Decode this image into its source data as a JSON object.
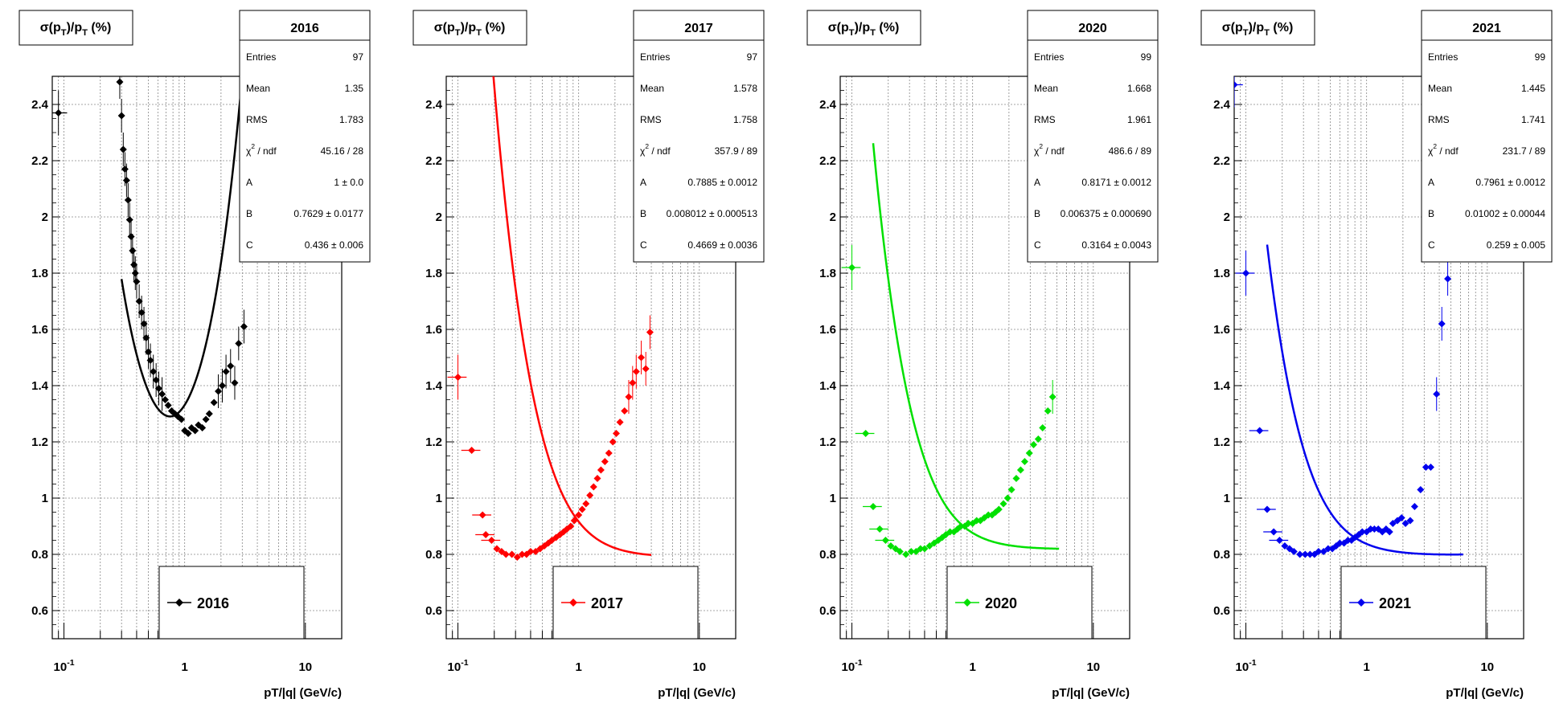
{
  "chart_data": [
    {
      "type": "scatter",
      "title": "2016",
      "ylabel": "σ(p_T)/p_T (%)",
      "xlabel": "pT/|q| (GeV/c)",
      "x_scale": "log",
      "xlim": [
        0.08,
        20
      ],
      "ylim": [
        0.5,
        2.5
      ],
      "color": "#000000",
      "legend_label": "2016",
      "x_ticks": [
        "10^-1",
        "1",
        "10"
      ],
      "y_ticks": [
        "0.6",
        "0.8",
        "1",
        "1.2",
        "1.4",
        "1.6",
        "1.8",
        "2",
        "2.2",
        "2.4"
      ],
      "grid": true,
      "stats": {
        "Entries": "97",
        "Mean": "1.35",
        "RMS": "1.783",
        "chi2_ndf": "45.16 / 28",
        "A": "1 ± 0.0",
        "B": "0.7629 ± 0.0177",
        "C": "0.436 ± 0.006"
      },
      "fit": {
        "A": 1.0,
        "B": 0.7629,
        "C": 0.436,
        "x_min": 0.3,
        "x_max": 3.8
      },
      "points": [
        [
          0.09,
          2.37
        ],
        [
          0.29,
          2.48
        ],
        [
          0.3,
          2.36
        ],
        [
          0.31,
          2.24
        ],
        [
          0.32,
          2.17
        ],
        [
          0.33,
          2.13
        ],
        [
          0.34,
          2.06
        ],
        [
          0.35,
          1.99
        ],
        [
          0.36,
          1.93
        ],
        [
          0.37,
          1.88
        ],
        [
          0.38,
          1.83
        ],
        [
          0.39,
          1.8
        ],
        [
          0.4,
          1.77
        ],
        [
          0.42,
          1.7
        ],
        [
          0.44,
          1.66
        ],
        [
          0.46,
          1.62
        ],
        [
          0.48,
          1.57
        ],
        [
          0.5,
          1.52
        ],
        [
          0.52,
          1.49
        ],
        [
          0.55,
          1.45
        ],
        [
          0.58,
          1.42
        ],
        [
          0.61,
          1.39
        ],
        [
          0.65,
          1.37
        ],
        [
          0.69,
          1.35
        ],
        [
          0.73,
          1.33
        ],
        [
          0.78,
          1.31
        ],
        [
          0.83,
          1.3
        ],
        [
          0.88,
          1.29
        ],
        [
          0.94,
          1.28
        ],
        [
          1.0,
          1.24
        ],
        [
          1.07,
          1.23
        ],
        [
          1.14,
          1.25
        ],
        [
          1.22,
          1.24
        ],
        [
          1.3,
          1.26
        ],
        [
          1.4,
          1.25
        ],
        [
          1.5,
          1.28
        ],
        [
          1.6,
          1.3
        ],
        [
          1.75,
          1.34
        ],
        [
          1.9,
          1.38
        ],
        [
          2.05,
          1.4
        ],
        [
          2.2,
          1.45
        ],
        [
          2.4,
          1.47
        ],
        [
          2.6,
          1.41
        ],
        [
          2.8,
          1.55
        ],
        [
          3.1,
          1.61
        ]
      ]
    },
    {
      "type": "scatter",
      "title": "2017",
      "ylabel": "σ(p_T)/p_T (%)",
      "xlabel": "pT/|q| (GeV/c)",
      "x_scale": "log",
      "xlim": [
        0.08,
        20
      ],
      "ylim": [
        0.5,
        2.5
      ],
      "color": "#ff0000",
      "legend_label": "2017",
      "x_ticks": [
        "10^-1",
        "1",
        "10"
      ],
      "y_ticks": [
        "0.6",
        "0.8",
        "1",
        "1.2",
        "1.4",
        "1.6",
        "1.8",
        "2",
        "2.2",
        "2.4"
      ],
      "grid": true,
      "stats": {
        "Entries": "97",
        "Mean": "1.578",
        "RMS": "1.758",
        "chi2_ndf": "357.9 / 89",
        "A": "0.7885 ± 0.0012",
        "B": "0.008012 ± 0.000513",
        "C": "0.4669 ± 0.0036"
      },
      "fit": {
        "A": 0.7885,
        "B": 0.008012,
        "C": 0.4669,
        "x_min": 0.15,
        "x_max": 4.0
      },
      "points": [
        [
          0.1,
          1.43
        ],
        [
          0.13,
          1.17
        ],
        [
          0.16,
          0.94
        ],
        [
          0.17,
          0.87
        ],
        [
          0.19,
          0.85
        ],
        [
          0.21,
          0.82
        ],
        [
          0.23,
          0.81
        ],
        [
          0.25,
          0.8
        ],
        [
          0.28,
          0.8
        ],
        [
          0.31,
          0.79
        ],
        [
          0.34,
          0.8
        ],
        [
          0.37,
          0.8
        ],
        [
          0.4,
          0.81
        ],
        [
          0.44,
          0.81
        ],
        [
          0.48,
          0.82
        ],
        [
          0.52,
          0.83
        ],
        [
          0.56,
          0.84
        ],
        [
          0.6,
          0.85
        ],
        [
          0.65,
          0.86
        ],
        [
          0.7,
          0.87
        ],
        [
          0.75,
          0.88
        ],
        [
          0.8,
          0.89
        ],
        [
          0.86,
          0.9
        ],
        [
          0.92,
          0.92
        ],
        [
          1.0,
          0.94
        ],
        [
          1.07,
          0.96
        ],
        [
          1.15,
          0.98
        ],
        [
          1.24,
          1.01
        ],
        [
          1.33,
          1.04
        ],
        [
          1.43,
          1.07
        ],
        [
          1.53,
          1.1
        ],
        [
          1.65,
          1.13
        ],
        [
          1.78,
          1.16
        ],
        [
          1.92,
          1.2
        ],
        [
          2.05,
          1.23
        ],
        [
          2.2,
          1.27
        ],
        [
          2.4,
          1.31
        ],
        [
          2.6,
          1.36
        ],
        [
          2.8,
          1.41
        ],
        [
          3.0,
          1.45
        ],
        [
          3.3,
          1.5
        ],
        [
          3.6,
          1.46
        ],
        [
          3.9,
          1.59
        ]
      ]
    },
    {
      "type": "scatter",
      "title": "2020",
      "ylabel": "σ(p_T)/p_T (%)",
      "xlabel": "pT/|q| (GeV/c)",
      "x_scale": "log",
      "xlim": [
        0.08,
        20
      ],
      "ylim": [
        0.5,
        2.5
      ],
      "color": "#00e000",
      "legend_label": "2020",
      "x_ticks": [
        "10^-1",
        "1",
        "10"
      ],
      "y_ticks": [
        "0.6",
        "0.8",
        "1",
        "1.2",
        "1.4",
        "1.6",
        "1.8",
        "2",
        "2.2",
        "2.4"
      ],
      "grid": true,
      "stats": {
        "Entries": "99",
        "Mean": "1.668",
        "RMS": "1.961",
        "chi2_ndf": "486.6 / 89",
        "A": "0.8171 ± 0.0012",
        "B": "0.006375 ± 0.000690",
        "C": "0.3164 ± 0.0043"
      },
      "fit": {
        "A": 0.8171,
        "B": 0.006375,
        "C": 0.3164,
        "x_min": 0.15,
        "x_max": 5.2
      },
      "points": [
        [
          0.1,
          1.82
        ],
        [
          0.13,
          1.23
        ],
        [
          0.15,
          0.97
        ],
        [
          0.17,
          0.89
        ],
        [
          0.19,
          0.85
        ],
        [
          0.21,
          0.83
        ],
        [
          0.23,
          0.82
        ],
        [
          0.25,
          0.81
        ],
        [
          0.28,
          0.8
        ],
        [
          0.31,
          0.81
        ],
        [
          0.34,
          0.81
        ],
        [
          0.37,
          0.82
        ],
        [
          0.4,
          0.82
        ],
        [
          0.44,
          0.83
        ],
        [
          0.48,
          0.84
        ],
        [
          0.52,
          0.85
        ],
        [
          0.56,
          0.86
        ],
        [
          0.6,
          0.87
        ],
        [
          0.65,
          0.88
        ],
        [
          0.7,
          0.88
        ],
        [
          0.75,
          0.89
        ],
        [
          0.8,
          0.9
        ],
        [
          0.86,
          0.9
        ],
        [
          0.92,
          0.91
        ],
        [
          1.0,
          0.91
        ],
        [
          1.08,
          0.92
        ],
        [
          1.16,
          0.92
        ],
        [
          1.25,
          0.93
        ],
        [
          1.35,
          0.94
        ],
        [
          1.45,
          0.94
        ],
        [
          1.55,
          0.95
        ],
        [
          1.65,
          0.96
        ],
        [
          1.8,
          0.98
        ],
        [
          1.95,
          1.0
        ],
        [
          2.1,
          1.03
        ],
        [
          2.3,
          1.07
        ],
        [
          2.5,
          1.1
        ],
        [
          2.7,
          1.13
        ],
        [
          2.95,
          1.16
        ],
        [
          3.2,
          1.19
        ],
        [
          3.5,
          1.21
        ],
        [
          3.8,
          1.25
        ],
        [
          4.2,
          1.31
        ],
        [
          4.6,
          1.36
        ]
      ]
    },
    {
      "type": "scatter",
      "title": "2021",
      "ylabel": "σ(p_T)/p_T (%)",
      "xlabel": "pT/|q| (GeV/c)",
      "x_scale": "log",
      "xlim": [
        0.08,
        20
      ],
      "ylim": [
        0.5,
        2.5
      ],
      "color": "#0000ee",
      "legend_label": "2021",
      "x_ticks": [
        "10^-1",
        "1",
        "10"
      ],
      "y_ticks": [
        "0.6",
        "0.8",
        "1",
        "1.2",
        "1.4",
        "1.6",
        "1.8",
        "2",
        "2.2",
        "2.4"
      ],
      "grid": true,
      "stats": {
        "Entries": "99",
        "Mean": "1.445",
        "RMS": "1.741",
        "chi2_ndf": "231.7 / 89",
        "A": "0.7961 ± 0.0012",
        "B": "0.01002 ± 0.00044",
        "C": "0.259 ± 0.005"
      },
      "fit": {
        "A": 0.7961,
        "B": 0.01002,
        "C": 0.259,
        "x_min": 0.15,
        "x_max": 6.3
      },
      "points": [
        [
          0.08,
          2.47
        ],
        [
          0.1,
          1.8
        ],
        [
          0.13,
          1.24
        ],
        [
          0.15,
          0.96
        ],
        [
          0.17,
          0.88
        ],
        [
          0.19,
          0.85
        ],
        [
          0.21,
          0.83
        ],
        [
          0.23,
          0.82
        ],
        [
          0.25,
          0.81
        ],
        [
          0.28,
          0.8
        ],
        [
          0.31,
          0.8
        ],
        [
          0.34,
          0.8
        ],
        [
          0.37,
          0.8
        ],
        [
          0.4,
          0.81
        ],
        [
          0.44,
          0.81
        ],
        [
          0.48,
          0.82
        ],
        [
          0.52,
          0.82
        ],
        [
          0.56,
          0.83
        ],
        [
          0.6,
          0.84
        ],
        [
          0.65,
          0.84
        ],
        [
          0.7,
          0.85
        ],
        [
          0.75,
          0.85
        ],
        [
          0.8,
          0.86
        ],
        [
          0.86,
          0.87
        ],
        [
          0.92,
          0.88
        ],
        [
          1.0,
          0.88
        ],
        [
          1.08,
          0.89
        ],
        [
          1.16,
          0.89
        ],
        [
          1.25,
          0.89
        ],
        [
          1.35,
          0.88
        ],
        [
          1.45,
          0.89
        ],
        [
          1.55,
          0.88
        ],
        [
          1.65,
          0.91
        ],
        [
          1.8,
          0.92
        ],
        [
          1.95,
          0.93
        ],
        [
          2.1,
          0.91
        ],
        [
          2.3,
          0.92
        ],
        [
          2.5,
          0.97
        ],
        [
          2.8,
          1.03
        ],
        [
          3.1,
          1.11
        ],
        [
          3.4,
          1.11
        ],
        [
          3.8,
          1.37
        ],
        [
          4.2,
          1.62
        ],
        [
          4.7,
          1.78
        ]
      ]
    }
  ]
}
